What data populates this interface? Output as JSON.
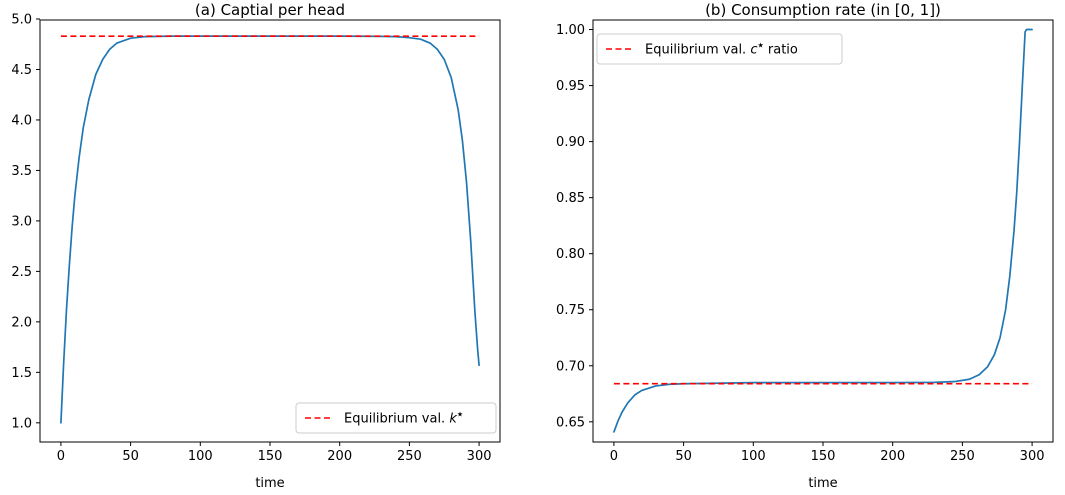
{
  "chart_data": [
    {
      "type": "line",
      "title": "(a) Captial per head",
      "xlabel": "time",
      "ylabel": "",
      "xlim": [
        -15,
        315
      ],
      "ylim": [
        0.81,
        4.99
      ],
      "xticks": [
        0,
        50,
        100,
        150,
        200,
        250,
        300
      ],
      "yticks": [
        1.0,
        1.5,
        2.0,
        2.5,
        3.0,
        3.5,
        4.0,
        4.5,
        5.0
      ],
      "ytick_labels": [
        "1.0",
        "1.5",
        "2.0",
        "2.5",
        "3.0",
        "3.5",
        "4.0",
        "4.5",
        "5.0"
      ],
      "grid": false,
      "legend_loc": "lower right",
      "series": [
        {
          "kind": "curve",
          "color": "#1f77b4",
          "x": [
            0,
            2,
            4,
            6,
            8,
            10,
            13,
            16,
            20,
            25,
            30,
            35,
            40,
            50,
            60,
            80,
            100,
            150,
            200,
            230,
            240,
            250,
            258,
            265,
            270,
            275,
            280,
            285,
            288,
            291,
            294,
            297,
            299,
            300
          ],
          "y": [
            1.0,
            1.6,
            2.12,
            2.55,
            2.93,
            3.25,
            3.62,
            3.92,
            4.2,
            4.45,
            4.6,
            4.7,
            4.76,
            4.81,
            4.825,
            4.83,
            4.83,
            4.83,
            4.83,
            4.828,
            4.825,
            4.815,
            4.8,
            4.76,
            4.7,
            4.6,
            4.42,
            4.1,
            3.8,
            3.38,
            2.8,
            2.1,
            1.72,
            1.57
          ]
        },
        {
          "kind": "hline",
          "name": "Equilibrium val. $k^\\star$",
          "color": "#ff0000",
          "dashed": true,
          "x": [
            0,
            300
          ],
          "y": [
            4.83,
            4.83
          ]
        }
      ],
      "legend": [
        {
          "label": "Equilibrium val. ",
          "symbol": "k",
          "star": "★"
        }
      ]
    },
    {
      "type": "line",
      "title": "(b) Consumption rate (in [0, 1])",
      "xlabel": "time",
      "ylabel": "",
      "xlim": [
        -15,
        315
      ],
      "ylim": [
        0.632,
        1.0085
      ],
      "xticks": [
        0,
        50,
        100,
        150,
        200,
        250,
        300
      ],
      "yticks": [
        0.65,
        0.7,
        0.75,
        0.8,
        0.85,
        0.9,
        0.95,
        1.0
      ],
      "ytick_labels": [
        "0.65",
        "0.70",
        "0.75",
        "0.80",
        "0.85",
        "0.90",
        "0.95",
        "1.00"
      ],
      "grid": false,
      "legend_loc": "upper left",
      "series": [
        {
          "kind": "curve",
          "color": "#1f77b4",
          "x": [
            0,
            3,
            6,
            10,
            15,
            20,
            25,
            30,
            40,
            50,
            100,
            150,
            200,
            230,
            245,
            255,
            262,
            268,
            273,
            277,
            281,
            284,
            287,
            289,
            291,
            293,
            295,
            296,
            300
          ],
          "y": [
            0.641,
            0.651,
            0.659,
            0.667,
            0.674,
            0.678,
            0.68,
            0.682,
            0.6835,
            0.684,
            0.685,
            0.685,
            0.685,
            0.6852,
            0.686,
            0.688,
            0.692,
            0.699,
            0.71,
            0.725,
            0.75,
            0.78,
            0.82,
            0.855,
            0.9,
            0.95,
            0.998,
            1.0,
            1.0
          ]
        },
        {
          "kind": "hline",
          "name": "Equilibrium val. $c^\\star$ ratio",
          "color": "#ff0000",
          "dashed": true,
          "x": [
            0,
            300
          ],
          "y": [
            0.684,
            0.684
          ]
        }
      ],
      "legend": [
        {
          "label": "Equilibrium val. ",
          "symbol": "c",
          "star": "★",
          "suffix": " ratio"
        }
      ]
    }
  ]
}
